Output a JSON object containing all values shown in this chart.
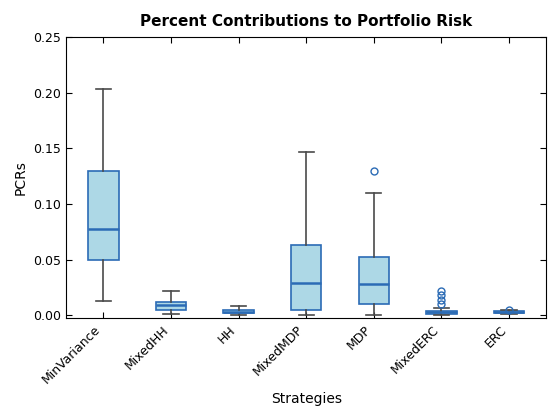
{
  "title": "Percent Contributions to Portfolio Risk",
  "xlabel": "Strategies",
  "ylabel": "PCRs",
  "categories": [
    "MinVariance",
    "MixedHH",
    "HH",
    "MixedMDP",
    "MDP",
    "MixedERC",
    "ERC"
  ],
  "ylim": [
    -0.003,
    0.25
  ],
  "yticks": [
    0.0,
    0.05,
    0.1,
    0.15,
    0.2,
    0.25
  ],
  "box_facecolor": "#ADD8E6",
  "box_edgecolor": "#2B6BB5",
  "median_color": "#2B6BB5",
  "whisker_color": "#4A4A4A",
  "cap_color": "#4A4A4A",
  "outlier_edgecolor": "#2B6BB5",
  "fig_facecolor": "#FFFFFF",
  "axes_facecolor": "#FFFFFF",
  "boxes": [
    {
      "q1": 0.05,
      "median": 0.077,
      "q3": 0.13,
      "whislo": 0.013,
      "whishi": 0.203,
      "fliers": []
    },
    {
      "q1": 0.005,
      "median": 0.009,
      "q3": 0.012,
      "whislo": 0.001,
      "whishi": 0.022,
      "fliers": []
    },
    {
      "q1": 0.002,
      "median": 0.003,
      "q3": 0.005,
      "whislo": 0.0,
      "whishi": 0.008,
      "fliers": []
    },
    {
      "q1": 0.005,
      "median": 0.029,
      "q3": 0.063,
      "whislo": 0.0,
      "whishi": 0.147,
      "fliers": []
    },
    {
      "q1": 0.01,
      "median": 0.028,
      "q3": 0.052,
      "whislo": 0.0,
      "whishi": 0.11,
      "fliers": [
        0.13
      ]
    },
    {
      "q1": 0.001,
      "median": 0.003,
      "q3": 0.004,
      "whislo": 0.0,
      "whishi": 0.006,
      "fliers": [
        0.014,
        0.018,
        0.022,
        0.01
      ]
    },
    {
      "q1": 0.002,
      "median": 0.003,
      "q3": 0.004,
      "whislo": 0.001,
      "whishi": 0.005,
      "fliers": [
        0.005
      ]
    }
  ]
}
